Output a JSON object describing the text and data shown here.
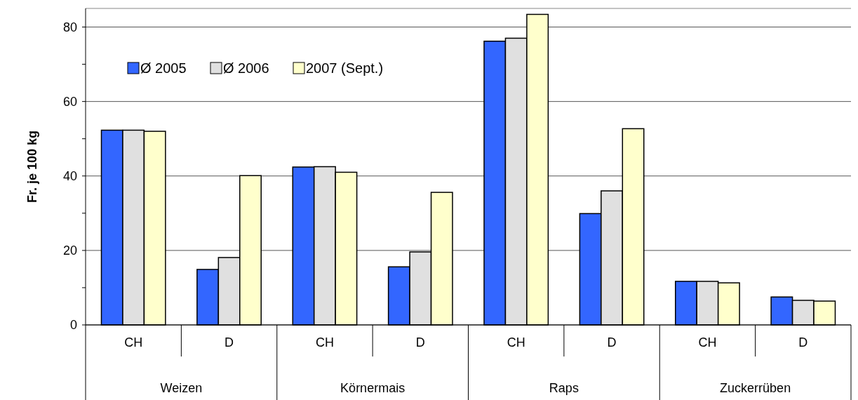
{
  "chart_data": {
    "type": "bar",
    "ylabel": "Fr. je 100 kg",
    "categories": [
      "CH",
      "D",
      "CH",
      "D",
      "CH",
      "D",
      "CH",
      "D"
    ],
    "annotations": [
      "Weizen",
      "Körnermais",
      "Raps",
      "Zuckerrüben"
    ],
    "series": [
      {
        "name": "Ø 2005",
        "color": "#3366ff",
        "values": [
          52.3,
          14.9,
          42.4,
          15.6,
          76.2,
          29.9,
          11.7,
          7.5
        ]
      },
      {
        "name": "Ø 2006",
        "color": "#e0e0e0",
        "values": [
          52.3,
          18.1,
          42.5,
          19.6,
          77.0,
          36.0,
          11.7,
          6.6
        ]
      },
      {
        "name": "2007 (Sept.)",
        "color": "#ffffcc",
        "values": [
          52.0,
          40.1,
          41.0,
          35.6,
          83.4,
          52.7,
          11.3,
          6.4
        ]
      }
    ],
    "ylim": [
      0,
      85
    ],
    "yticks": [
      0,
      {
        "value": 10,
        "label": null
      },
      20,
      {
        "value": 30,
        "label": null
      },
      40,
      {
        "value": 50,
        "label": null
      },
      60,
      {
        "value": 70,
        "label": null
      },
      80
    ],
    "grid": "y",
    "legend": "top left"
  }
}
